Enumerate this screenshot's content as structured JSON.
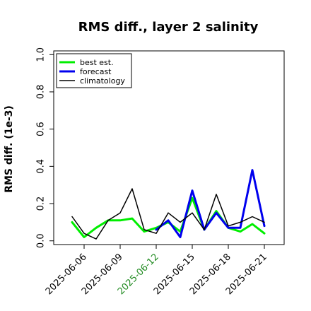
{
  "chart_data": {
    "type": "line",
    "title": "RMS diff., layer 2 salinity",
    "ylabel": "RMS diff. (1e-3)",
    "xlabel": "",
    "ylim": [
      -0.02,
      1.02
    ],
    "y_ticks": [
      0.0,
      0.2,
      0.4,
      0.6,
      0.8,
      1.0
    ],
    "y_tick_labels": [
      "0.0",
      "0.2",
      "0.4",
      "0.6",
      "0.8",
      "1.0"
    ],
    "x": [
      "2025-06-05",
      "2025-06-06",
      "2025-06-07",
      "2025-06-08",
      "2025-06-09",
      "2025-06-10",
      "2025-06-11",
      "2025-06-12",
      "2025-06-13",
      "2025-06-14",
      "2025-06-15",
      "2025-06-16",
      "2025-06-17",
      "2025-06-18",
      "2025-06-19",
      "2025-06-20",
      "2025-06-21"
    ],
    "x_ticks": [
      "2025-06-06",
      "2025-06-09",
      "2025-06-12",
      "2025-06-15",
      "2025-06-18",
      "2025-06-21"
    ],
    "x_tick_labels": [
      "2025-06-06",
      "2025-06-09",
      "2025-06-12",
      "2025-06-15",
      "2025-06-18",
      "2025-06-21"
    ],
    "x_tick_colors": [
      "#000000",
      "#000000",
      "#228b22",
      "#000000",
      "#000000",
      "#000000"
    ],
    "grid": false,
    "legend_position": "top-left",
    "series": [
      {
        "name": "best est.",
        "color": "#00ee00",
        "width": 3,
        "values": [
          0.1,
          0.02,
          0.07,
          0.11,
          0.11,
          0.12,
          0.05,
          0.07,
          0.1,
          0.05,
          0.23,
          0.06,
          0.16,
          0.07,
          0.05,
          0.09,
          0.04
        ]
      },
      {
        "name": "forecast",
        "color": "#0000ee",
        "width": 3,
        "values": [
          null,
          null,
          null,
          null,
          null,
          null,
          null,
          0.06,
          0.11,
          0.02,
          0.27,
          0.06,
          0.15,
          0.07,
          0.07,
          0.38,
          0.08
        ]
      },
      {
        "name": "climatology",
        "color": "#000000",
        "width": 1.5,
        "values": [
          0.13,
          0.04,
          0.01,
          0.11,
          0.15,
          0.28,
          0.06,
          0.04,
          0.15,
          0.1,
          0.15,
          0.06,
          0.25,
          0.08,
          0.1,
          0.13,
          0.1
        ]
      }
    ]
  }
}
